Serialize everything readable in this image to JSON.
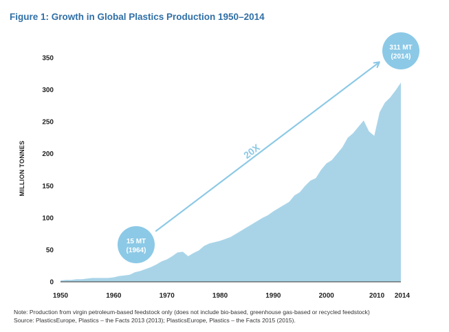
{
  "title": "Figure 1: Growth in Global Plastics Production 1950–2014",
  "colors": {
    "title": "#2f6fa6",
    "area": "#a9d4e8",
    "accent": "#8cc9e6"
  },
  "chart_data": {
    "type": "area",
    "ylabel": "MILLION TONNES",
    "xlabel": "",
    "xlim": [
      1950,
      2014
    ],
    "ylim": [
      0,
      350
    ],
    "x_ticks": [
      1950,
      1960,
      1970,
      1980,
      1990,
      2000,
      2010,
      2014
    ],
    "y_ticks": [
      0,
      50,
      100,
      150,
      200,
      250,
      300,
      350
    ],
    "grid": false,
    "series": [
      {
        "x": [
          1950,
          1951,
          1952,
          1953,
          1954,
          1955,
          1956,
          1957,
          1958,
          1959,
          1960,
          1961,
          1962,
          1963,
          1964,
          1965,
          1966,
          1967,
          1968,
          1969,
          1970,
          1971,
          1972,
          1973,
          1974,
          1975,
          1976,
          1977,
          1978,
          1979,
          1980,
          1981,
          1982,
          1983,
          1984,
          1985,
          1986,
          1987,
          1988,
          1989,
          1990,
          1991,
          1992,
          1993,
          1994,
          1995,
          1996,
          1997,
          1998,
          1999,
          2000,
          2001,
          2002,
          2003,
          2004,
          2005,
          2006,
          2007,
          2008,
          2009,
          2010,
          2011,
          2012,
          2013,
          2014
        ],
        "values": [
          2,
          3,
          3,
          4,
          4,
          5,
          6,
          6,
          6,
          6,
          7,
          9,
          10,
          11,
          15,
          17,
          20,
          23,
          27,
          32,
          35,
          40,
          46,
          47,
          40,
          45,
          49,
          56,
          60,
          62,
          64,
          67,
          70,
          75,
          80,
          85,
          90,
          95,
          100,
          104,
          110,
          115,
          120,
          125,
          135,
          140,
          150,
          158,
          162,
          175,
          185,
          190,
          200,
          210,
          225,
          232,
          242,
          252,
          235,
          228,
          265,
          280,
          288,
          299,
          311
        ]
      }
    ],
    "annotations": [
      {
        "line1": "15 MT",
        "line2": "(1964)",
        "x": 1964,
        "y": 15
      },
      {
        "line1": "311 MT",
        "line2": "(2014)",
        "x": 2014,
        "y": 311
      },
      {
        "text": "20X"
      }
    ]
  },
  "notes": {
    "note": "Note: Production from virgin petroleum-based feedstock only (does not include bio-based, greenhouse gas-based or recycled feedstock)",
    "source": "Source: PlasticsEurope, Plastics – the Facts 2013 (2013); PlasticsEurope, Plastics – the Facts 2015 (2015)."
  }
}
